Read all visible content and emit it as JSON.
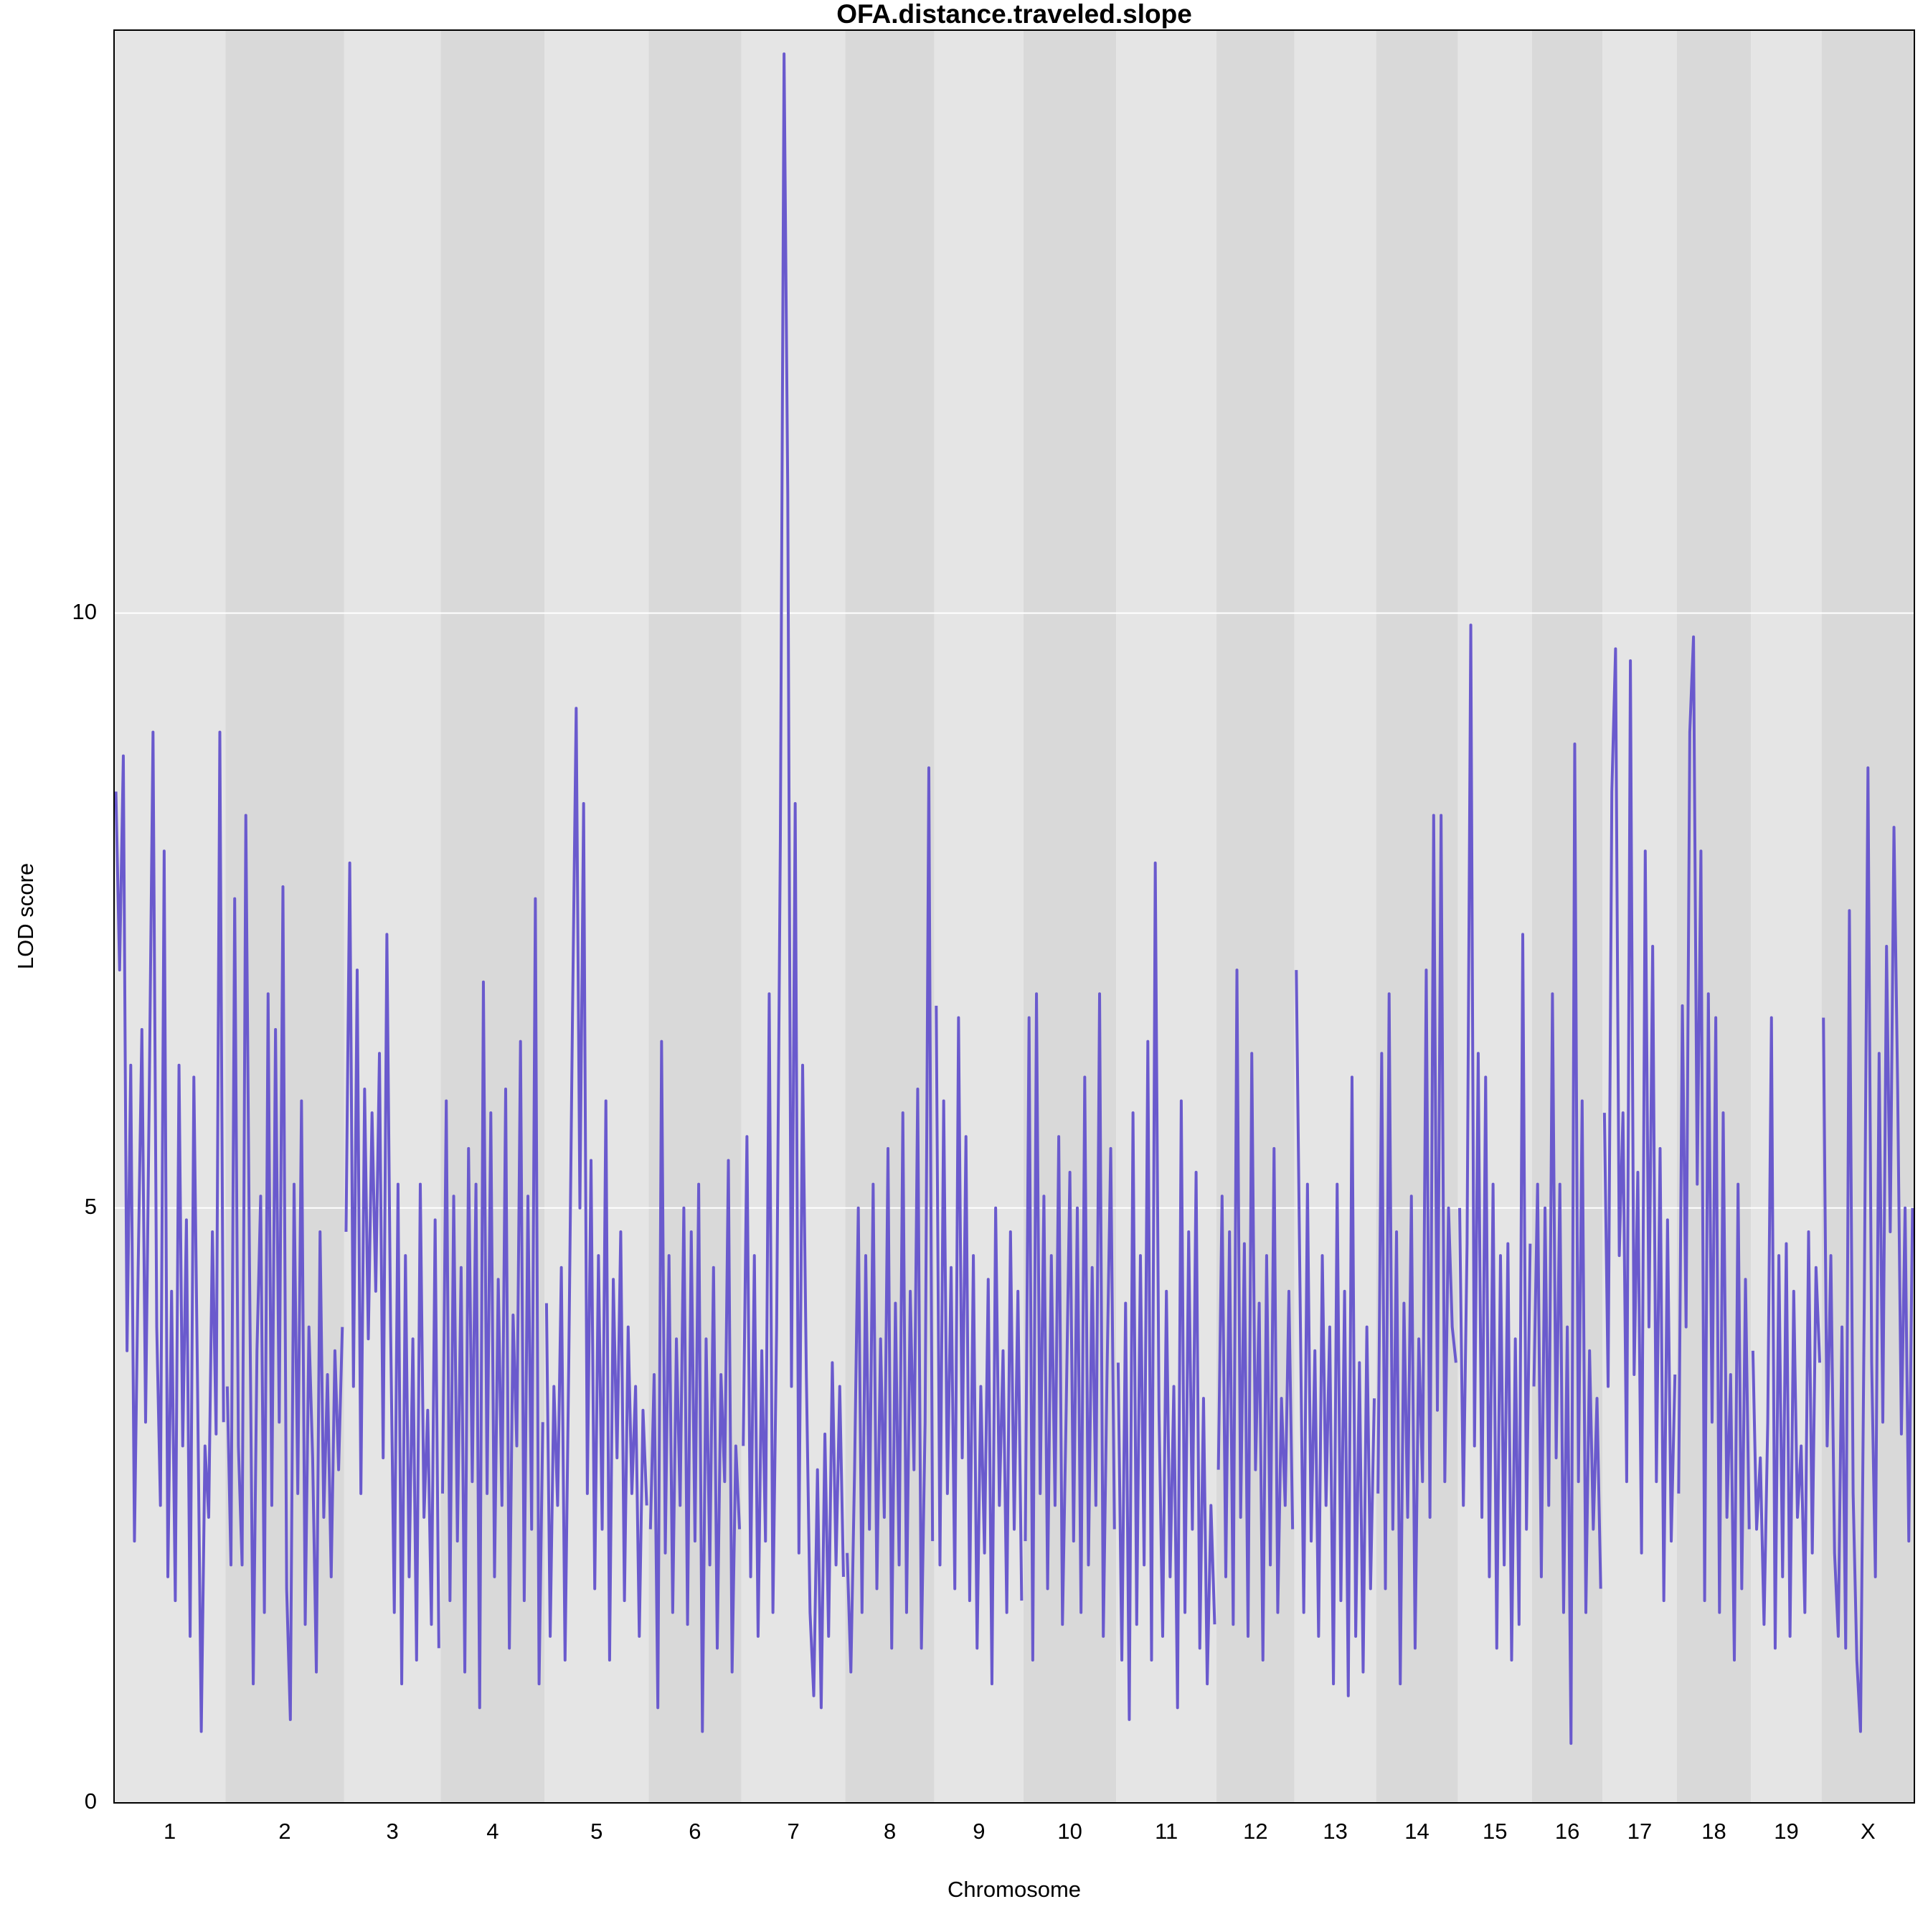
{
  "chart_data": {
    "type": "line",
    "title": "OFA.distance.traveled.slope",
    "xlabel": "Chromosome",
    "ylabel": "LOD score",
    "categories": [
      "1",
      "2",
      "3",
      "4",
      "5",
      "6",
      "7",
      "8",
      "9",
      "10",
      "11",
      "12",
      "13",
      "14",
      "15",
      "16",
      "17",
      "18",
      "19",
      "X"
    ],
    "values": [
      [
        8.5,
        7.0,
        8.8,
        3.8,
        6.2,
        2.2,
        4.5,
        6.5,
        3.2,
        6.0,
        9.0,
        4.0,
        2.5,
        8.0,
        1.9,
        4.3,
        1.7,
        6.2,
        3.0,
        4.9,
        1.4,
        6.1,
        3.5,
        0.6,
        3.0,
        2.4,
        4.8,
        3.1,
        9.0,
        3.2
      ],
      [
        3.5,
        2.0,
        7.6,
        3.0,
        2.0,
        8.3,
        4.5,
        1.0,
        3.8,
        5.1,
        1.6,
        6.8,
        2.5,
        6.5,
        3.2,
        7.7,
        1.8,
        0.7,
        5.2,
        2.6,
        5.9,
        1.5,
        4.0,
        2.9,
        1.1,
        4.8,
        2.4,
        3.6,
        1.9,
        3.8,
        2.8,
        4.0
      ],
      [
        4.8,
        7.9,
        3.5,
        7.0,
        2.6,
        6.0,
        3.9,
        5.8,
        4.3,
        6.3,
        2.9,
        7.3,
        4.0,
        1.6,
        5.2,
        1.0,
        4.6,
        1.9,
        3.9,
        1.2,
        5.2,
        2.4,
        3.3,
        1.5,
        4.9,
        1.3
      ],
      [
        2.6,
        5.9,
        1.7,
        5.1,
        2.2,
        4.5,
        1.1,
        5.5,
        2.7,
        5.2,
        0.8,
        6.9,
        2.6,
        5.8,
        1.9,
        4.4,
        2.5,
        6.0,
        1.3,
        4.1,
        3.0,
        6.4,
        1.7,
        5.1,
        2.3,
        7.6,
        1.0,
        3.2
      ],
      [
        4.2,
        1.4,
        3.5,
        2.5,
        4.5,
        1.2,
        3.7,
        6.6,
        9.2,
        5.0,
        8.4,
        2.6,
        5.4,
        1.8,
        4.6,
        2.3,
        5.9,
        1.2,
        4.4,
        2.9,
        4.8,
        1.7,
        4.0,
        2.6,
        3.5,
        1.4,
        3.3,
        2.5
      ],
      [
        2.3,
        3.6,
        0.8,
        6.4,
        2.1,
        4.6,
        1.6,
        3.9,
        2.5,
        5.0,
        1.5,
        4.8,
        2.2,
        5.2,
        0.6,
        3.9,
        2.0,
        4.5,
        1.3,
        3.6,
        2.7,
        5.4,
        1.1,
        3.0,
        2.3
      ],
      [
        3.0,
        5.6,
        1.9,
        4.6,
        1.4,
        3.8,
        2.2,
        6.8,
        1.6,
        4.0,
        8.1,
        14.7,
        11.0,
        3.5,
        8.4,
        2.1,
        6.2,
        3.6,
        1.6,
        0.9,
        2.8,
        0.8,
        3.1,
        1.4,
        3.7,
        2.0,
        3.5,
        1.9
      ],
      [
        2.1,
        1.1,
        2.8,
        5.0,
        1.6,
        4.6,
        2.3,
        5.2,
        1.8,
        3.9,
        2.4,
        5.5,
        1.3,
        4.2,
        2.0,
        5.8,
        1.6,
        4.3,
        2.8,
        6.0,
        1.3,
        3.2,
        8.7,
        2.2
      ],
      [
        6.7,
        2.0,
        5.9,
        2.6,
        4.5,
        1.8,
        6.6,
        2.9,
        5.6,
        1.7,
        4.6,
        1.3,
        3.5,
        2.1,
        4.4,
        1.0,
        5.0,
        2.5,
        3.8,
        1.6,
        4.8,
        2.3,
        4.3,
        1.7
      ],
      [
        2.2,
        6.6,
        1.2,
        6.8,
        2.6,
        5.1,
        1.8,
        4.6,
        2.5,
        5.6,
        1.5,
        3.3,
        5.3,
        2.2,
        5.0,
        1.6,
        6.1,
        2.0,
        4.5,
        2.5,
        6.8,
        1.4,
        3.6,
        5.5,
        2.3
      ],
      [
        3.7,
        1.2,
        4.2,
        0.7,
        5.8,
        1.5,
        4.6,
        2.0,
        6.4,
        1.2,
        7.9,
        3.3,
        1.4,
        4.3,
        1.9,
        3.5,
        0.8,
        5.9,
        1.6,
        4.8,
        2.3,
        5.3,
        1.3,
        3.4,
        1.0,
        2.5,
        1.5
      ],
      [
        2.8,
        5.1,
        1.9,
        4.8,
        1.5,
        7.0,
        2.4,
        4.7,
        1.4,
        6.3,
        2.8,
        4.2,
        1.2,
        4.6,
        2.0,
        5.5,
        1.6,
        3.4,
        2.5,
        4.3,
        2.3
      ],
      [
        7.0,
        4.3,
        1.6,
        5.2,
        2.2,
        3.8,
        1.4,
        4.6,
        2.5,
        4.0,
        1.0,
        5.2,
        1.7,
        4.3,
        0.9,
        6.1,
        1.4,
        3.7,
        1.1,
        4.0,
        1.8,
        3.4
      ],
      [
        2.6,
        6.3,
        1.8,
        6.8,
        2.3,
        4.8,
        1.0,
        4.2,
        2.4,
        5.1,
        1.3,
        3.9,
        2.7,
        7.0,
        2.4,
        8.3,
        3.3,
        8.3,
        2.7,
        5.0,
        4.0,
        3.7
      ],
      [
        5.0,
        2.5,
        4.7,
        9.9,
        3.0,
        6.3,
        2.4,
        6.1,
        1.9,
        5.2,
        1.3,
        4.6,
        2.0,
        4.7,
        1.2,
        3.9,
        1.5,
        7.3,
        2.3,
        4.7
      ],
      [
        3.5,
        5.2,
        1.9,
        5.0,
        2.5,
        6.8,
        2.9,
        5.2,
        1.6,
        4.0,
        0.5,
        8.9,
        2.7,
        5.9,
        1.6,
        3.8,
        2.3,
        3.4,
        1.8
      ],
      [
        5.8,
        3.5,
        8.5,
        9.7,
        4.6,
        5.8,
        2.7,
        9.6,
        3.6,
        5.3,
        2.1,
        8.0,
        4.0,
        7.2,
        2.7,
        5.5,
        1.7,
        4.9,
        2.2,
        3.6
      ],
      [
        2.6,
        6.7,
        4.0,
        9.0,
        9.8,
        5.2,
        8.0,
        1.7,
        6.8,
        3.2,
        6.6,
        1.6,
        5.8,
        2.4,
        3.6,
        1.2,
        5.2,
        1.8,
        4.4,
        2.3
      ],
      [
        3.8,
        2.3,
        2.9,
        1.5,
        3.2,
        6.6,
        1.3,
        4.6,
        1.9,
        4.7,
        1.4,
        4.3,
        2.4,
        3.0,
        1.6,
        4.8,
        2.1,
        4.5,
        3.7
      ],
      [
        6.6,
        3.0,
        4.6,
        2.1,
        1.4,
        4.0,
        1.3,
        7.5,
        2.6,
        1.2,
        0.6,
        4.2,
        8.7,
        3.7,
        1.9,
        6.3,
        3.2,
        7.2,
        4.8,
        8.2,
        6.0,
        3.1,
        5.0,
        2.2,
        5.0
      ]
    ],
    "color": "#6a5acd",
    "band_colors": [
      "#e5e5e5",
      "#d9d9d9"
    ],
    "ylim": [
      0,
      14.9
    ],
    "yticks": [
      0,
      5,
      10
    ],
    "grid": true
  }
}
